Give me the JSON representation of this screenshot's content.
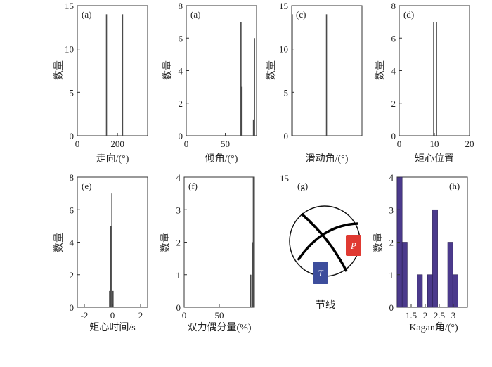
{
  "colors": {
    "bar": "#4a4a4a",
    "kagan_bar": "#4b3a8c",
    "frame": "#333333",
    "p_box": "#e03a32",
    "t_box": "#3d4d9c"
  },
  "chart_data": [
    {
      "id": "a1",
      "type": "bar",
      "tag": "(a)",
      "xlabel": "走向/(°)",
      "ylabel": "数量",
      "xlim": [
        0,
        350
      ],
      "ylim": [
        0,
        15
      ],
      "xticks": [
        0,
        200
      ],
      "yticks": [
        0,
        5,
        10,
        15
      ],
      "bar_width": 5,
      "bars": [
        {
          "x": 145,
          "y": 14
        },
        {
          "x": 225,
          "y": 14
        }
      ]
    },
    {
      "id": "a2",
      "type": "bar",
      "tag": "(a)",
      "xlabel": "倾角/(°)",
      "ylabel": "数量",
      "xlim": [
        0,
        90
      ],
      "ylim": [
        0,
        8
      ],
      "xticks": [
        0,
        50
      ],
      "yticks": [
        0,
        2,
        4,
        6,
        8
      ],
      "bar_width": 1.3,
      "bars": [
        {
          "x": 70,
          "y": 7
        },
        {
          "x": 71.3,
          "y": 3
        },
        {
          "x": 86,
          "y": 1
        },
        {
          "x": 87.3,
          "y": 6
        }
      ]
    },
    {
      "id": "c",
      "type": "bar",
      "tag": "(c)",
      "xlabel": "滑动角/(°)",
      "ylabel": "数量",
      "xlim": [
        -180,
        180
      ],
      "ylim": [
        0,
        15
      ],
      "xticks": [],
      "yticks": [
        0,
        5,
        10,
        15
      ],
      "bar_width": 5,
      "bars": [
        {
          "x": -180,
          "y": 14
        },
        {
          "x": -2,
          "y": 14
        }
      ]
    },
    {
      "id": "d",
      "type": "bar",
      "tag": "(d)",
      "xlabel": "矩心位置",
      "ylabel": "数量",
      "xlim": [
        0,
        20
      ],
      "ylim": [
        0,
        8
      ],
      "xticks": [
        0,
        10,
        20
      ],
      "yticks": [
        0,
        2,
        4,
        6,
        8
      ],
      "bar_width": 0.3,
      "bars": [
        {
          "x": 9.8,
          "y": 7
        },
        {
          "x": 10.6,
          "y": 7
        }
      ]
    },
    {
      "id": "e",
      "type": "bar",
      "tag": "(e)",
      "xlabel": "矩心时间/s",
      "ylabel": "数量",
      "xlim": [
        -2.5,
        2.5
      ],
      "ylim": [
        0,
        8
      ],
      "xticks": [
        -2,
        0,
        2
      ],
      "yticks": [
        0,
        2,
        4,
        6,
        8
      ],
      "bar_width": 0.08,
      "bars": [
        {
          "x": -0.2,
          "y": 1
        },
        {
          "x": -0.12,
          "y": 5
        },
        {
          "x": -0.04,
          "y": 7
        },
        {
          "x": 0.04,
          "y": 1
        }
      ]
    },
    {
      "id": "f",
      "type": "bar",
      "tag": "(f)",
      "xlabel": "双力偶分量(%)",
      "ylabel": "数量",
      "xlim": [
        0,
        100
      ],
      "ylim": [
        0,
        4
      ],
      "xticks": [
        0,
        50
      ],
      "yticks": [
        0,
        1,
        2,
        3,
        4
      ],
      "bar_width": 0.9,
      "bars": [
        {
          "x": 93.5,
          "y": 1
        },
        {
          "x": 94.4,
          "y": 1
        },
        {
          "x": 97.2,
          "y": 2
        },
        {
          "x": 98.1,
          "y": 4
        },
        {
          "x": 99,
          "y": 4
        }
      ]
    },
    {
      "id": "h",
      "type": "bar",
      "tag": "(h)",
      "xlabel": "Kagan角/(°)",
      "ylabel": "数量",
      "xlim": [
        1,
        3.5
      ],
      "ylim": [
        0,
        4
      ],
      "xticks": [
        1.5,
        2,
        2.5,
        3
      ],
      "yticks": [
        0,
        1,
        2,
        3,
        4
      ],
      "bar_width": 0.18,
      "bars": [
        {
          "x": 1.09,
          "y": 4
        },
        {
          "x": 1.27,
          "y": 2
        },
        {
          "x": 1.81,
          "y": 1
        },
        {
          "x": 2.17,
          "y": 1
        },
        {
          "x": 2.35,
          "y": 3
        },
        {
          "x": 2.89,
          "y": 2
        },
        {
          "x": 3.07,
          "y": 1
        }
      ]
    }
  ],
  "nodal_panel": {
    "tag": "(g)",
    "stray_tick": "15",
    "p_label": "P",
    "t_label": "T",
    "caption": "节线"
  }
}
